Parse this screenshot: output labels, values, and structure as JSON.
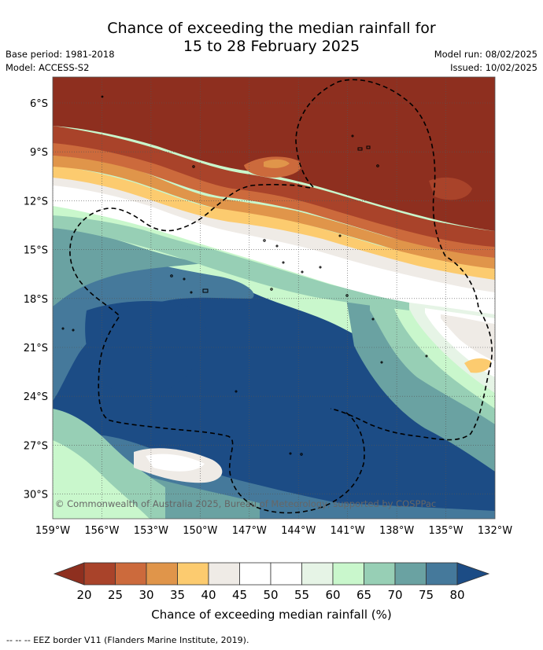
{
  "title": {
    "line1": "Chance of exceeding the median rainfall for",
    "line2": "15 to 28 February 2025"
  },
  "meta": {
    "base_period": "Base period: 1981-2018",
    "model": "Model: ACCESS-S2",
    "model_run": "Model run: 08/02/2025",
    "issued": "Issued: 10/02/2025"
  },
  "map": {
    "lat_ticks": [
      "6°S",
      "9°S",
      "12°S",
      "15°S",
      "18°S",
      "21°S",
      "24°S",
      "27°S",
      "30°S"
    ],
    "lon_ticks": [
      "159°W",
      "156°W",
      "153°W",
      "150°W",
      "147°W",
      "144°W",
      "141°W",
      "138°W",
      "135°W",
      "132°W"
    ],
    "copyright": "© Commonwealth of Australia 2025, Bureau of Meteorology, supported by COSPPac"
  },
  "colorbar": {
    "ticks": [
      "20",
      "25",
      "30",
      "35",
      "40",
      "45",
      "50",
      "55",
      "60",
      "65",
      "70",
      "75",
      "80"
    ],
    "colors": [
      "#8e2f1f",
      "#a9432a",
      "#cc6a3c",
      "#e0954a",
      "#fccb6f",
      "#efebe6",
      "#ffffff",
      "#ffffff",
      "#e6f4e6",
      "#c9f7cc",
      "#97cfb5",
      "#6aa2a2",
      "#45799b",
      "#1c4c85"
    ],
    "label": "Chance of exceeding median rainfall (%)"
  },
  "footer": "--  --  -- EEZ border V11 (Flanders Marine Institute, 2019)."
}
